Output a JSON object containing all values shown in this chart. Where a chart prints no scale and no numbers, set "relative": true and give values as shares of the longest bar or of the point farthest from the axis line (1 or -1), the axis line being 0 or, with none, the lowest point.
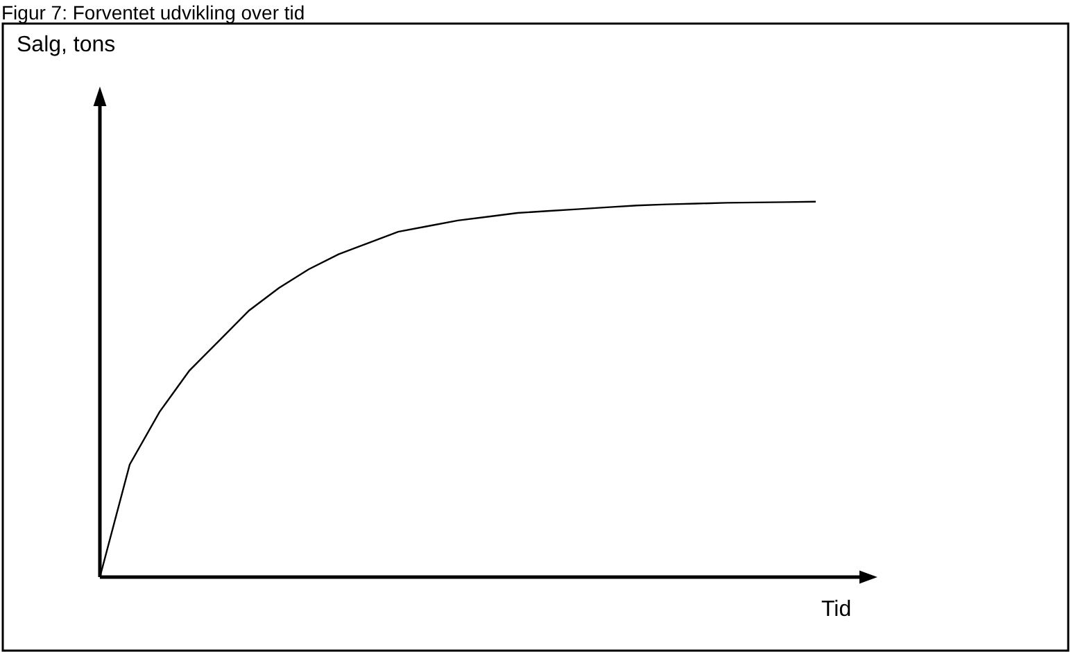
{
  "chart_data": {
    "type": "line",
    "relative": true,
    "title": "Figur 7: Forventet udvikling over tid",
    "xlabel": "Tid",
    "annotations": [
      "Salg, tons"
    ],
    "categories": [
      null,
      null,
      null,
      null,
      null,
      null,
      null,
      null,
      null,
      null,
      null,
      null,
      null,
      null,
      null,
      null,
      null,
      null,
      null,
      null,
      null,
      null,
      null,
      null,
      null
    ],
    "series": [
      {
        "color": "#000000",
        "values": [
          0,
          0.3,
          0.44,
          0.55,
          0.63,
          0.71,
          0.77,
          0.82,
          0.86,
          0.89,
          0.92,
          0.935,
          0.95,
          0.96,
          0.97,
          0.975,
          0.98,
          0.985,
          0.99,
          0.993,
          0.995,
          0.997,
          0.998,
          0.999,
          1
        ]
      }
    ],
    "marker": "none",
    "line_style": "solid"
  }
}
